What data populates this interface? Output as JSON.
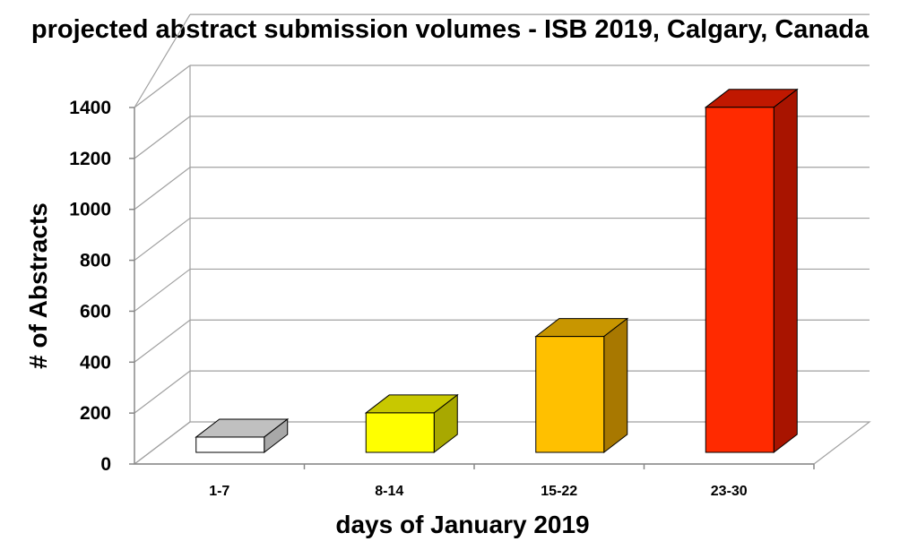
{
  "chart_data": {
    "type": "bar",
    "style": "3d",
    "title": "projected abstract submission volumes - ISB 2019, Calgary, Canada",
    "xlabel": "days of January 2019",
    "ylabel": "# of Abstracts",
    "categories": [
      "1-7",
      "8-14",
      "15-22",
      "23-30"
    ],
    "values": [
      60,
      155,
      455,
      1355
    ],
    "ylim": [
      0,
      1400
    ],
    "yticks": [
      "0",
      "200",
      "400",
      "600",
      "800",
      "1000",
      "1200",
      "1400"
    ],
    "grid": true,
    "legend": "none",
    "colors": {
      "bar_front": [
        "#ffffff",
        "#ffff00",
        "#ffc000",
        "#ff2a00"
      ],
      "bar_top": [
        "#c0c0c0",
        "#c8c800",
        "#c89600",
        "#c01800"
      ],
      "bar_side": [
        "#a8a8a8",
        "#a8a800",
        "#a87800",
        "#a81400"
      ],
      "gridline": "#a0a0a0",
      "outline": "#000000"
    }
  }
}
